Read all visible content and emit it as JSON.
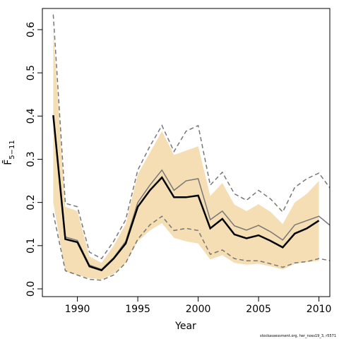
{
  "chart_data": {
    "type": "line",
    "xlabel": "Year",
    "ylabel": "F̄",
    "ylabel_subscript": "5−11",
    "footnote": "stockassessment.org, her_noss19_3, r5571",
    "x": [
      1988,
      1989,
      1990,
      1991,
      1992,
      1993,
      1994,
      1995,
      1996,
      1997,
      1998,
      1999,
      2000,
      2001,
      2002,
      2003,
      2004,
      2005,
      2006,
      2007,
      2008,
      2009,
      2010,
      2011
    ],
    "band": {
      "color": "#f5deb3",
      "upper": [
        0.6,
        0.19,
        0.18,
        0.075,
        0.06,
        0.1,
        0.15,
        0.265,
        0.315,
        0.365,
        0.31,
        0.32,
        0.33,
        0.215,
        0.245,
        0.195,
        0.18,
        0.196,
        0.178,
        0.15,
        0.2,
        0.22,
        0.25,
        null
      ],
      "lower": [
        0.2,
        0.04,
        0.032,
        0.025,
        0.022,
        0.035,
        0.06,
        0.11,
        0.135,
        0.152,
        0.118,
        0.11,
        0.105,
        0.068,
        0.078,
        0.06,
        0.056,
        0.058,
        0.052,
        0.045,
        0.058,
        0.062,
        0.065,
        null
      ]
    },
    "series": [
      {
        "color": "#777777",
        "style": "dashed",
        "values": [
          0.635,
          0.198,
          0.19,
          0.085,
          0.07,
          0.11,
          0.16,
          0.275,
          0.33,
          0.378,
          0.318,
          0.365,
          0.378,
          0.24,
          0.27,
          0.22,
          0.205,
          0.228,
          0.208,
          0.178,
          0.235,
          0.255,
          0.268,
          0.23
        ]
      },
      {
        "color": "#777777",
        "style": "dashed",
        "values": [
          0.175,
          0.042,
          0.032,
          0.022,
          0.02,
          0.032,
          0.06,
          0.115,
          0.148,
          0.168,
          0.135,
          0.14,
          0.135,
          0.08,
          0.09,
          0.07,
          0.065,
          0.065,
          0.058,
          0.05,
          0.06,
          0.063,
          0.07,
          0.065
        ]
      },
      {
        "color": "#777777",
        "style": "solid",
        "values": [
          0.4,
          0.12,
          0.112,
          0.055,
          0.045,
          0.072,
          0.11,
          0.2,
          0.24,
          0.275,
          0.228,
          0.25,
          0.255,
          0.16,
          0.18,
          0.146,
          0.136,
          0.147,
          0.132,
          0.113,
          0.148,
          0.158,
          0.168,
          0.145
        ]
      },
      {
        "color": "#000000",
        "style": "bold",
        "values": [
          0.402,
          0.115,
          0.108,
          0.052,
          0.043,
          0.07,
          0.105,
          0.19,
          0.228,
          0.258,
          0.212,
          0.212,
          0.216,
          0.14,
          0.162,
          0.126,
          0.117,
          0.124,
          0.111,
          0.096,
          0.128,
          0.14,
          0.158,
          null
        ]
      }
    ],
    "xlim": [
      1987.1,
      2010.9
    ],
    "ylim": [
      -0.018,
      0.649
    ],
    "xticks": [
      1990,
      1995,
      2000,
      2005,
      2010
    ],
    "yticks": [
      {
        "value": 0,
        "label": "0.0"
      },
      0.1,
      0.2,
      0.3,
      0.4,
      0.5,
      0.6
    ]
  }
}
